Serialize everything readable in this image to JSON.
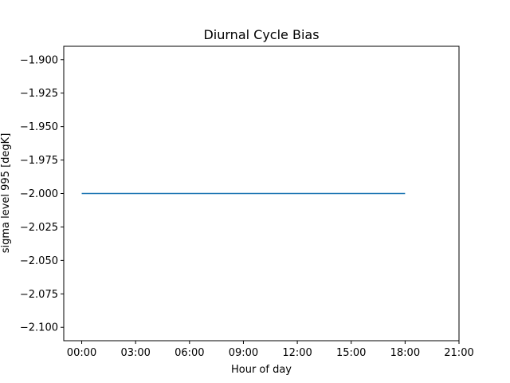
{
  "chart_data": {
    "type": "line",
    "title": "Diurnal Cycle Bias",
    "xlabel": "Hour of day",
    "ylabel": "sigma level 995 [degK]",
    "x_ticks": [
      "00:00",
      "03:00",
      "06:00",
      "09:00",
      "12:00",
      "15:00",
      "18:00",
      "21:00"
    ],
    "y_ticks": [
      "−1.900",
      "−1.925",
      "−1.950",
      "−1.975",
      "−2.000",
      "−2.025",
      "−2.050",
      "−2.075",
      "−2.100"
    ],
    "y_tick_values": [
      -1.9,
      -1.925,
      -1.95,
      -1.975,
      -2.0,
      -2.025,
      -2.05,
      -2.075,
      -2.1
    ],
    "xlim": [
      "-01:00",
      "21:00"
    ],
    "ylim": [
      -2.11,
      -1.89
    ],
    "grid": false,
    "series": [
      {
        "color": "#1f77b4",
        "x": [
          "00:00",
          "03:00",
          "06:00",
          "09:00",
          "12:00",
          "15:00",
          "18:00"
        ],
        "y": [
          -2.0,
          -2.0,
          -2.0,
          -2.0,
          -2.0,
          -2.0,
          -2.0
        ]
      }
    ]
  }
}
